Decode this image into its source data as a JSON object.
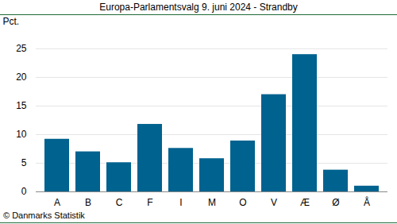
{
  "chart_data": {
    "type": "bar",
    "title": "Europa-Parlamentsvalg 9. juni 2024 - Strandby",
    "y_label": "Pct.",
    "caption": "© Danmarks Statistik",
    "categories": [
      "A",
      "B",
      "C",
      "F",
      "I",
      "M",
      "O",
      "V",
      "Æ",
      "Ø",
      "Å"
    ],
    "values": [
      9.2,
      7.0,
      5.1,
      11.8,
      7.6,
      5.8,
      8.9,
      17.0,
      24.0,
      3.8,
      1.0
    ],
    "color": "#00628f",
    "ylim": [
      0,
      25
    ],
    "yticks": [
      0,
      5,
      10,
      15,
      20,
      25
    ],
    "grid": true
  }
}
